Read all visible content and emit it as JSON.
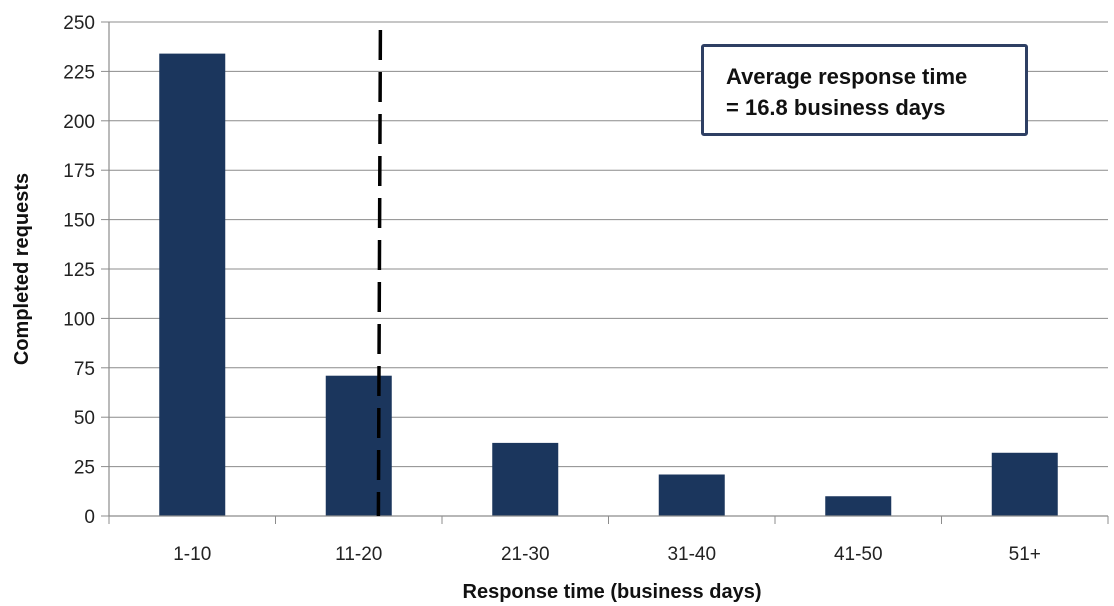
{
  "chart_data": {
    "type": "bar",
    "categories": [
      "1-10",
      "11-20",
      "21-30",
      "31-40",
      "41-50",
      "51+"
    ],
    "values": [
      234,
      71,
      37,
      21,
      10,
      32
    ],
    "xlabel": "Response time (business days)",
    "ylabel": "Completed requests",
    "ylim": [
      0,
      250
    ],
    "yticks": [
      0,
      25,
      50,
      75,
      100,
      125,
      150,
      175,
      200,
      225,
      250
    ],
    "grid": true,
    "bar_color": "#1b365d",
    "reference_line": {
      "style": "dashed",
      "value": 16.8,
      "color": "#000000"
    },
    "annotation": {
      "lines": [
        "Average response time",
        "= 16.8 business days"
      ],
      "border_color": "#2e3f63"
    }
  }
}
